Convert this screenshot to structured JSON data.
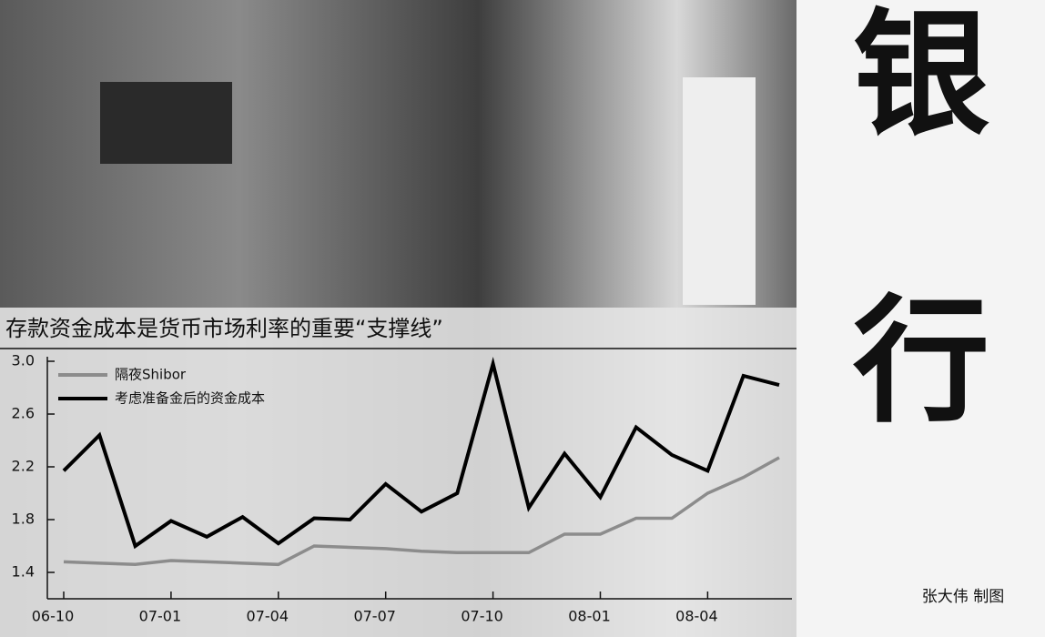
{
  "banner": "银行",
  "credit": "张大伟 制图",
  "chart_data": {
    "type": "line",
    "title": "存款资金成本是货币市场利率的重要“支撑线”",
    "categories": [
      "06-10",
      null,
      null,
      "07-01",
      null,
      null,
      "07-04",
      null,
      null,
      "07-07",
      null,
      null,
      "07-10",
      null,
      null,
      "08-01",
      null,
      null,
      "08-04",
      null,
      null
    ],
    "series": [
      {
        "name": "隔夜Shibor",
        "color": "#8c8c8c",
        "values": [
          1.48,
          1.47,
          1.46,
          1.49,
          1.48,
          1.47,
          1.46,
          1.6,
          1.59,
          1.58,
          1.56,
          1.55,
          1.55,
          1.55,
          1.69,
          1.69,
          1.81,
          1.81,
          2.0,
          2.12,
          2.27
        ]
      },
      {
        "name": "考虑准备金后的资金成本",
        "color": "#000000",
        "values": [
          2.17,
          2.44,
          1.6,
          1.79,
          1.67,
          1.82,
          1.62,
          1.81,
          1.8,
          2.07,
          1.86,
          2.0,
          2.98,
          1.89,
          2.3,
          1.97,
          2.5,
          2.29,
          2.17,
          2.89,
          2.82
        ]
      }
    ],
    "ylim": [
      1.2,
      3.0
    ],
    "yticks": [
      1.4,
      1.8,
      2.2,
      2.6,
      {
        "value": 3,
        "label": "3.0"
      }
    ],
    "legend": "top-left"
  }
}
